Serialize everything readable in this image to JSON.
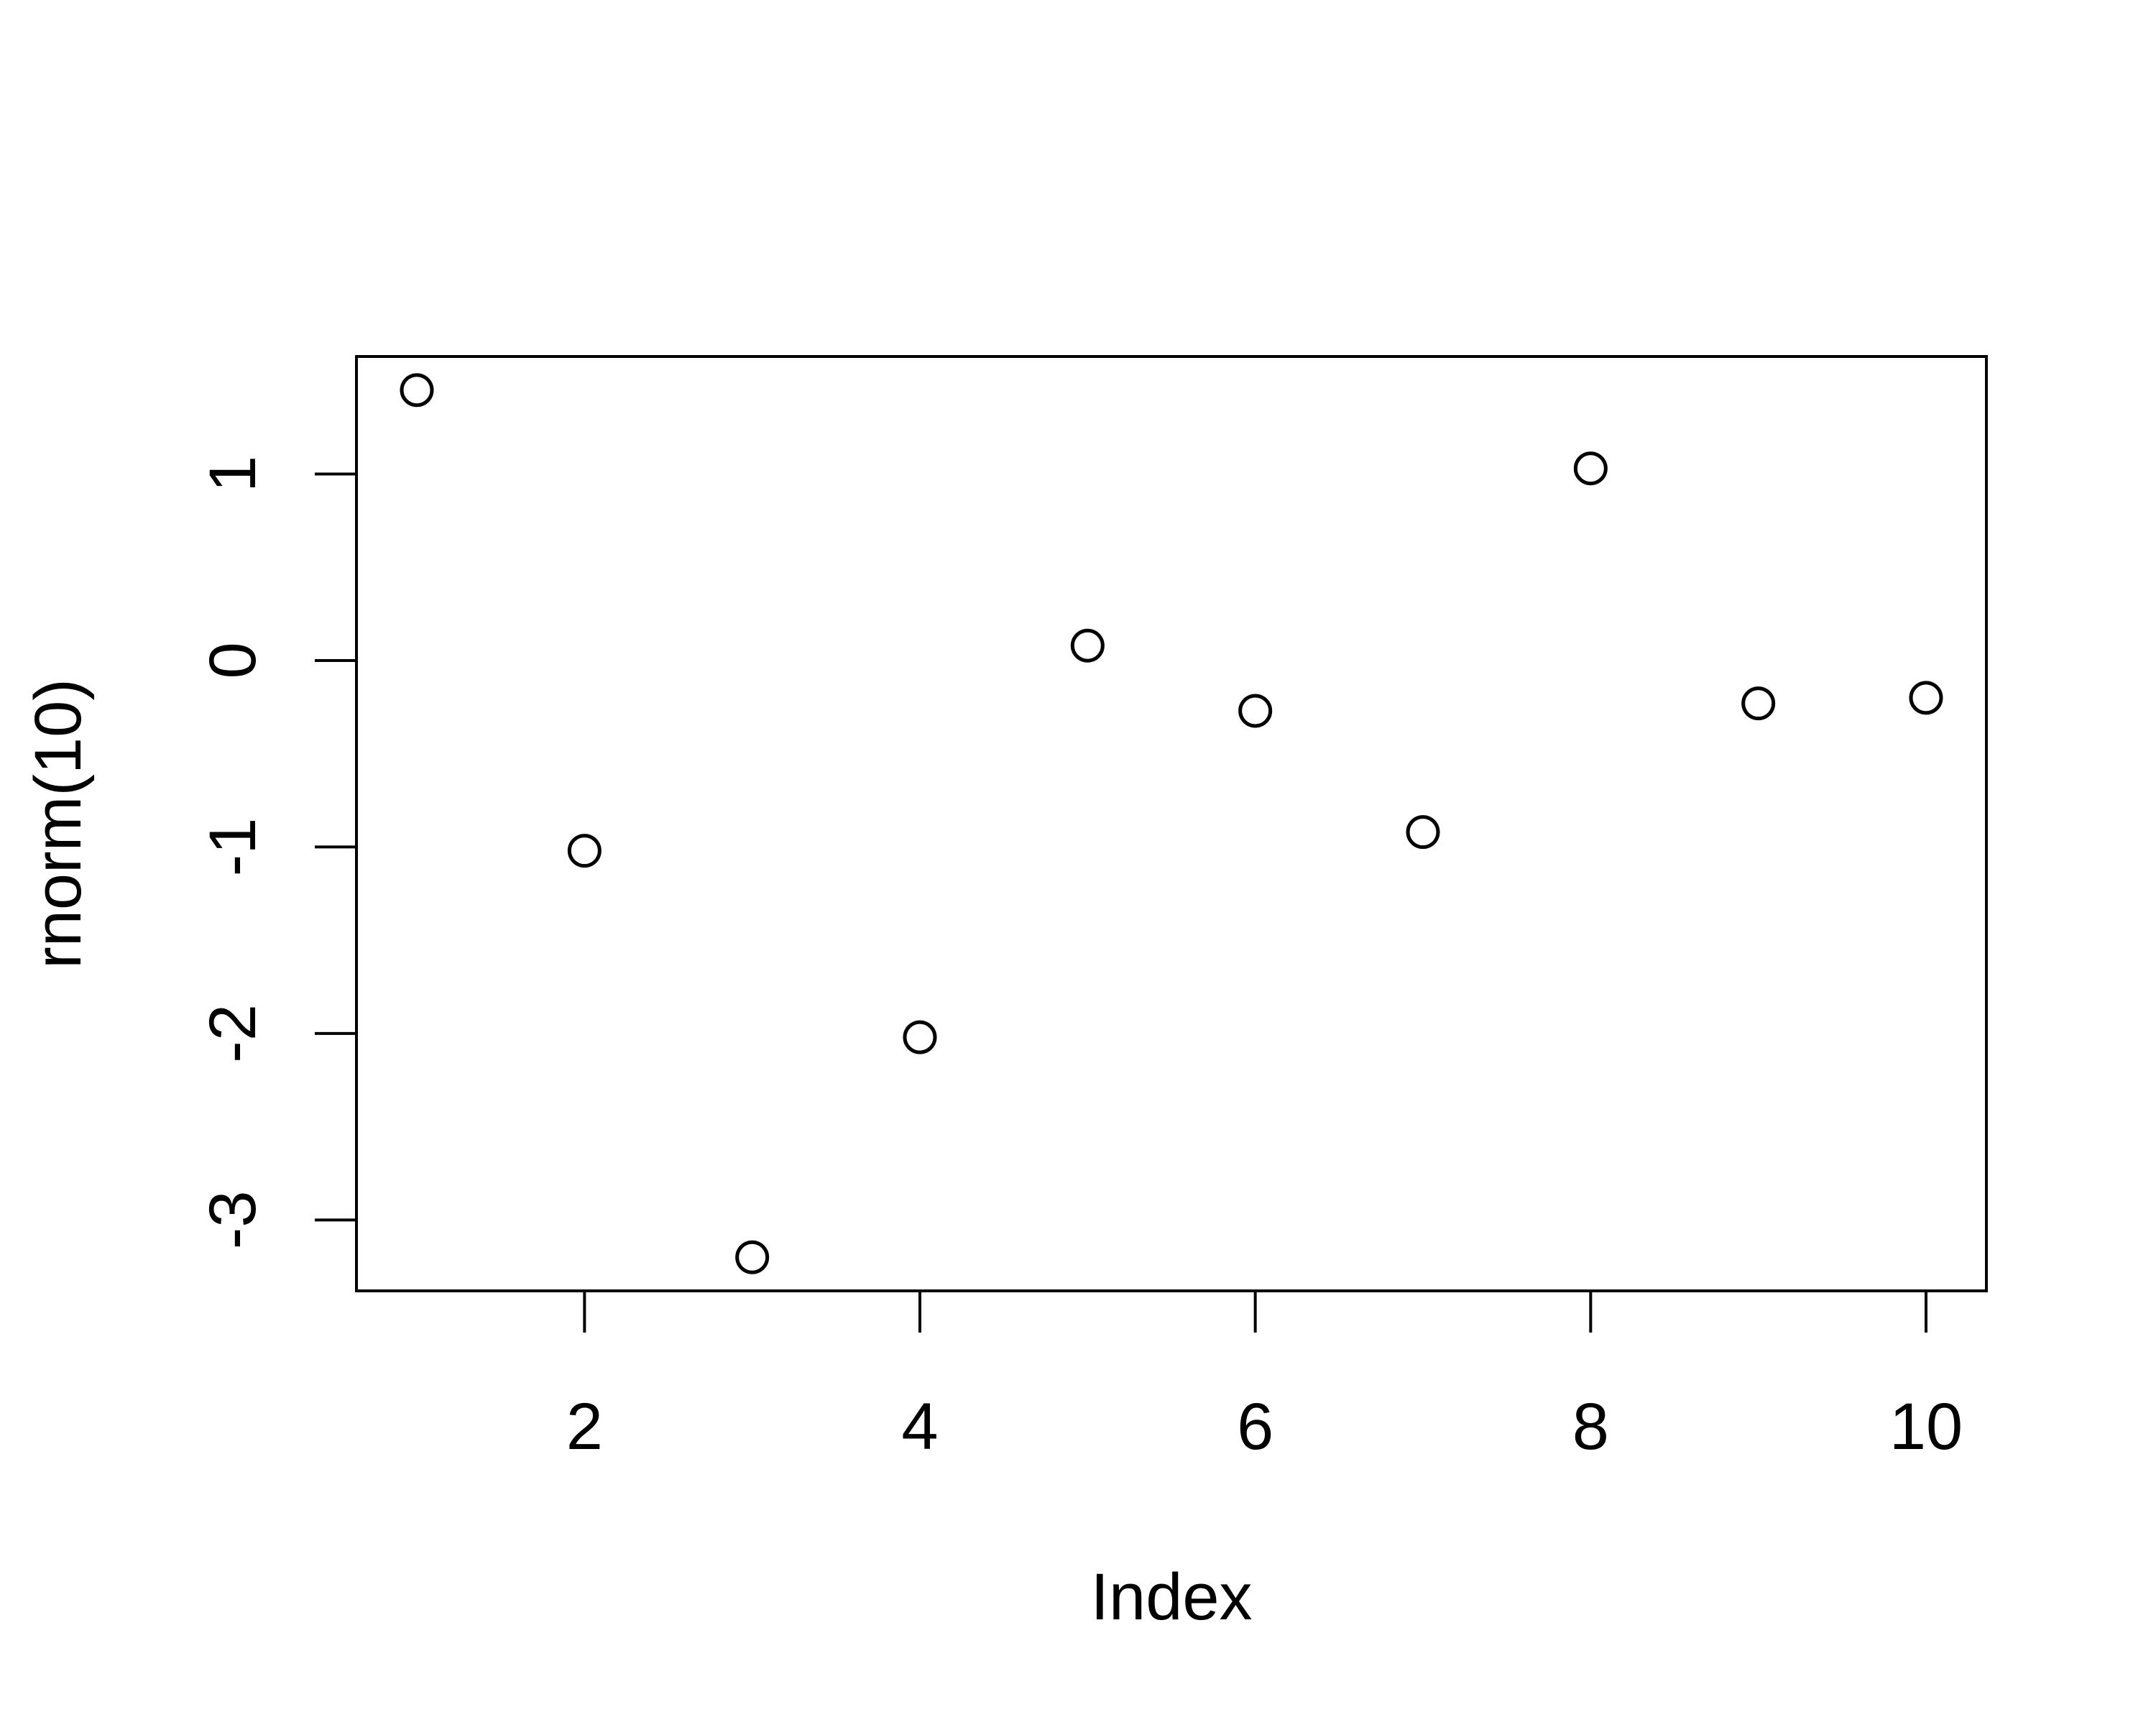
{
  "chart_data": {
    "type": "scatter",
    "x": [
      1,
      2,
      3,
      4,
      5,
      6,
      7,
      8,
      9,
      10
    ],
    "y": [
      1.45,
      -1.02,
      -3.2,
      -2.02,
      0.08,
      -0.27,
      -0.92,
      1.03,
      -0.23,
      -0.2
    ],
    "xlabel": "Index",
    "ylabel": "rnorm(10)",
    "xlim": [
      0.64,
      10.36
    ],
    "ylim": [
      -3.38,
      1.63
    ],
    "xticks": [
      2,
      4,
      6,
      8,
      10
    ],
    "yticks": [
      -3,
      -2,
      -1,
      0,
      1
    ],
    "xtick_labels": [
      "2",
      "4",
      "6",
      "8",
      "10"
    ],
    "ytick_labels": [
      "-3",
      "-2",
      "-1",
      "0",
      "1"
    ],
    "grid": false,
    "marker": "open-circle",
    "colors": {
      "points": "#000000",
      "frame": "#000000",
      "background": "#ffffff"
    }
  }
}
